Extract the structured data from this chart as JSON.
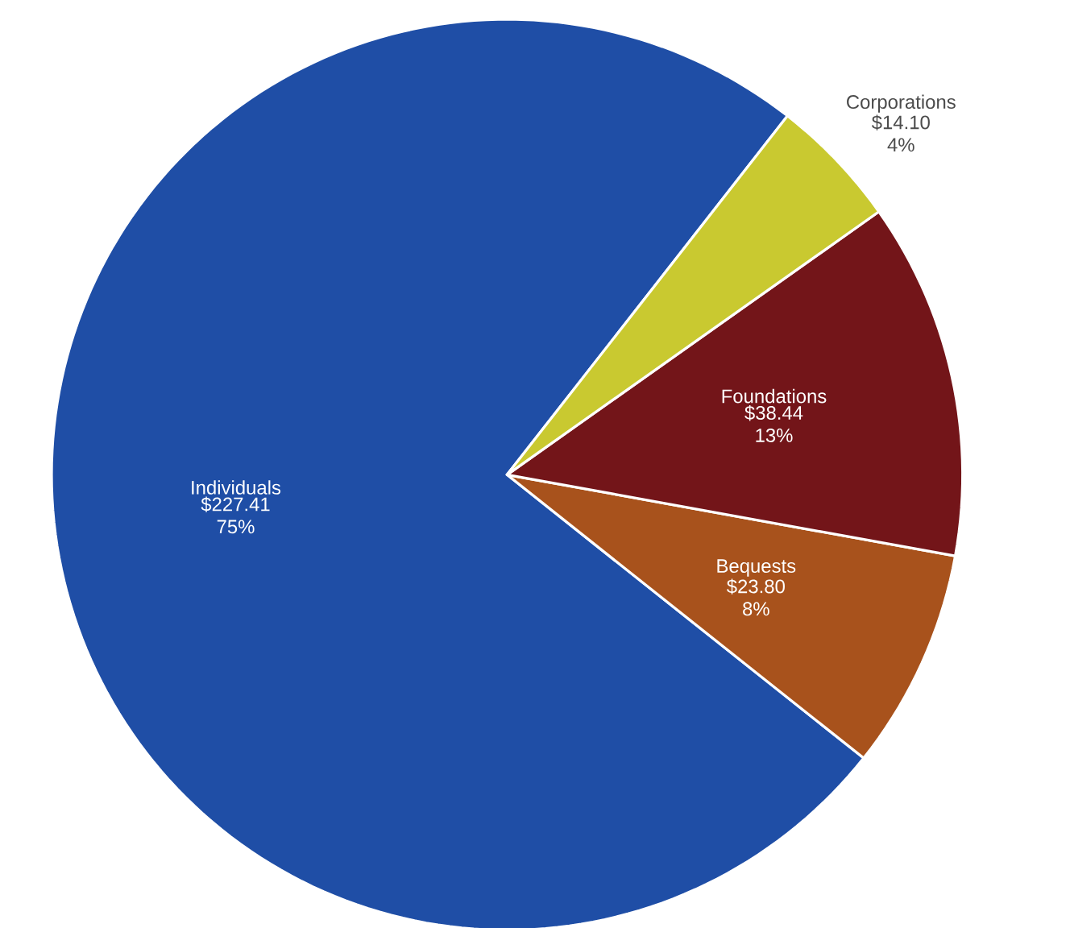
{
  "chart_data": {
    "type": "pie",
    "categories": [
      "Individuals",
      "Bequests",
      "Foundations",
      "Corporations"
    ],
    "values": [
      227.41,
      23.8,
      38.44,
      14.1
    ],
    "value_labels": [
      "$227.41 75%",
      "$23.80 8%",
      "$38.44 13%",
      "$14.10 4%"
    ],
    "colors": [
      "#1f4ea6",
      "#a8521c",
      "#731519",
      "#c9c930"
    ]
  }
}
